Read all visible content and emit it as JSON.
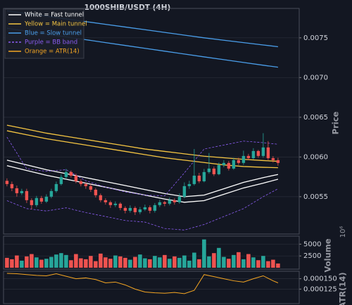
{
  "chart_data": [
    {
      "type": "candlestick",
      "title": "1000SHIB/USDT (4H)",
      "ylabel": "Price",
      "up_color": "#26a69a",
      "down_color": "#ef5350",
      "grid": true,
      "legend": "upper left",
      "xlim": [
        -0.7,
        59.3
      ],
      "ylim": [
        0.00503,
        0.00787
      ],
      "yticks": [
        0.0055,
        {
          "value": 0.006,
          "label": "0.0060"
        },
        0.0065,
        {
          "value": 0.007,
          "label": "0.0070"
        },
        0.0075
      ],
      "x": [
        0,
        1,
        2,
        3,
        4,
        5,
        6,
        7,
        8,
        9,
        10,
        11,
        12,
        13,
        14,
        15,
        16,
        17,
        18,
        19,
        20,
        21,
        22,
        23,
        24,
        25,
        26,
        27,
        28,
        29,
        30,
        31,
        32,
        33,
        34,
        35,
        36,
        37,
        38,
        39,
        40,
        41,
        42,
        43,
        44,
        45,
        46,
        47,
        48,
        49,
        50,
        51,
        52,
        53,
        54,
        55
      ],
      "open": [
        0.0057,
        0.005659,
        0.005606,
        0.005544,
        0.005571,
        0.005456,
        0.005394,
        0.005483,
        0.005438,
        0.0055,
        0.005571,
        0.005659,
        0.005748,
        0.00581,
        0.005765,
        0.005694,
        0.005659,
        0.005633,
        0.005588,
        0.005518,
        0.005456,
        0.00543,
        0.005394,
        0.005412,
        0.005358,
        0.005323,
        0.005358,
        0.005305,
        0.00534,
        0.005367,
        0.005323,
        0.005394,
        0.00543,
        0.005412,
        0.005456,
        0.00543,
        0.0055,
        0.005633,
        0.005659,
        0.005765,
        0.005694,
        0.00581,
        0.005854,
        0.005783,
        0.005898,
        0.005925,
        0.005854,
        0.00596,
        0.005925,
        0.006013,
        0.005985,
        0.006075,
        0.006013,
        0.00612,
        0.005985,
        0.00596
      ],
      "high": [
        0.00573,
        0.00569,
        0.00564,
        0.0056,
        0.0056,
        0.00548,
        0.00551,
        0.00551,
        0.00553,
        0.0056,
        0.00569,
        0.00578,
        0.00585,
        0.00583,
        0.00579,
        0.00572,
        0.00568,
        0.00566,
        0.00561,
        0.00554,
        0.00548,
        0.00545,
        0.00544,
        0.00543,
        0.00538,
        0.00539,
        0.00538,
        0.00537,
        0.0054,
        0.00539,
        0.00542,
        0.00546,
        0.00545,
        0.00549,
        0.00548,
        0.00554,
        0.00568,
        0.0057,
        0.0061,
        0.0058,
        0.00585,
        0.00605,
        0.00588,
        0.00593,
        0.00596,
        0.00595,
        0.00599,
        0.00599,
        0.00608,
        0.00604,
        0.00611,
        0.00609,
        0.0063,
        0.0062,
        0.00601,
        0.00599
      ],
      "low": [
        0.00563,
        0.00557,
        0.0055,
        0.00552,
        0.00542,
        0.00534,
        0.00537,
        0.00541,
        0.00542,
        0.00548,
        0.00555,
        0.00564,
        0.00572,
        0.00574,
        0.00567,
        0.00563,
        0.0056,
        0.00556,
        0.00549,
        0.00543,
        0.0054,
        0.00536,
        0.00537,
        0.00533,
        0.00529,
        0.0053,
        0.00527,
        0.00528,
        0.00532,
        0.00529,
        0.0053,
        0.00537,
        0.00538,
        0.00539,
        0.0054,
        0.00541,
        0.00548,
        0.0056,
        0.00564,
        0.00567,
        0.00568,
        0.00579,
        0.00576,
        0.00577,
        0.00587,
        0.00583,
        0.00584,
        0.0059,
        0.0059,
        0.00596,
        0.00597,
        0.00599,
        0.00599,
        0.00596,
        0.00593,
        0.00589
      ],
      "close": [
        0.005659,
        0.005606,
        0.005544,
        0.005571,
        0.005456,
        0.005394,
        0.005483,
        0.005438,
        0.0055,
        0.005571,
        0.005659,
        0.005748,
        0.00581,
        0.005765,
        0.005694,
        0.005659,
        0.005633,
        0.005588,
        0.005518,
        0.005456,
        0.00543,
        0.005394,
        0.005412,
        0.005358,
        0.005323,
        0.005358,
        0.005305,
        0.00534,
        0.005367,
        0.005323,
        0.005394,
        0.00543,
        0.005412,
        0.005456,
        0.00543,
        0.0055,
        0.005633,
        0.005659,
        0.005765,
        0.005694,
        0.00581,
        0.005854,
        0.005783,
        0.005898,
        0.005925,
        0.005854,
        0.00596,
        0.005925,
        0.006013,
        0.005985,
        0.006075,
        0.006013,
        0.00612,
        0.005985,
        0.00596,
        0.005925
      ],
      "overlays": [
        {
          "name": "White = Fast tunnel",
          "color": "#ffffff",
          "x": [
            0,
            4,
            8,
            12,
            16,
            20,
            24,
            28,
            32,
            36,
            40,
            44,
            48,
            52,
            55
          ],
          "upper": [
            0.00596,
            0.0059,
            0.00584,
            0.00579,
            0.00574,
            0.00569,
            0.00564,
            0.00559,
            0.00554,
            0.0055,
            0.00552,
            0.0056,
            0.00568,
            0.00574,
            0.00578
          ],
          "lower": [
            0.00589,
            0.00583,
            0.00577,
            0.00572,
            0.00567,
            0.00562,
            0.00557,
            0.00552,
            0.00547,
            0.00543,
            0.00545,
            0.00553,
            0.00561,
            0.00567,
            0.00572
          ]
        },
        {
          "name": "Yellow = Main tunnel",
          "color": "#f5c542",
          "x": [
            0,
            4,
            8,
            12,
            16,
            20,
            24,
            28,
            32,
            36,
            40,
            44,
            48,
            52,
            55
          ],
          "upper": [
            0.0064,
            0.00635,
            0.0063,
            0.00626,
            0.00622,
            0.00618,
            0.00614,
            0.0061,
            0.00607,
            0.00604,
            0.00601,
            0.00599,
            0.00597,
            0.005955,
            0.005945
          ],
          "lower": [
            0.00633,
            0.00628,
            0.00623,
            0.00619,
            0.00615,
            0.00611,
            0.00607,
            0.00603,
            0.00599,
            0.00596,
            0.00593,
            0.0059,
            0.00588,
            0.00587,
            0.005865
          ]
        },
        {
          "name": "Blue = Slow tunnel",
          "color": "#4a9eea",
          "x": [
            0,
            4,
            8,
            12,
            16,
            20,
            24,
            28,
            32,
            36,
            40,
            44,
            48,
            52,
            55
          ],
          "upper": [
            0.00784,
            0.007806,
            0.007772,
            0.007738,
            0.007704,
            0.00767,
            0.007636,
            0.007602,
            0.007568,
            0.007534,
            0.0075,
            0.00747,
            0.00744,
            0.00741,
            0.007388
          ],
          "lower": [
            0.00762,
            0.007584,
            0.007548,
            0.007512,
            0.007476,
            0.00744,
            0.007404,
            0.007368,
            0.007332,
            0.007296,
            0.00726,
            0.007225,
            0.00719,
            0.007155,
            0.00713
          ]
        },
        {
          "name": "Purple = BB band",
          "color": "#8a5cf0",
          "dashed": true,
          "x": [
            0,
            4,
            8,
            12,
            16,
            20,
            24,
            28,
            32,
            36,
            40,
            44,
            48,
            52,
            55
          ],
          "upper": [
            0.00625,
            0.00585,
            0.00582,
            0.00584,
            0.0057,
            0.00562,
            0.00556,
            0.00552,
            0.00551,
            0.0058,
            0.0061,
            0.00615,
            0.0062,
            0.00618,
            0.00616
          ],
          "lower": [
            0.00545,
            0.00535,
            0.00532,
            0.00536,
            0.0053,
            0.00525,
            0.0052,
            0.00518,
            0.0051,
            0.00508,
            0.00515,
            0.00525,
            0.00535,
            0.0055,
            0.0056
          ]
        }
      ]
    },
    {
      "type": "bar",
      "ylabel": "Volume",
      "offset_label": "10⁶",
      "grid": true,
      "xlim": [
        -0.7,
        59.3
      ],
      "ylim": [
        -300,
        6700
      ],
      "yticks": [
        2500,
        5000
      ],
      "x": [
        0,
        1,
        2,
        3,
        4,
        5,
        6,
        7,
        8,
        9,
        10,
        11,
        12,
        13,
        14,
        15,
        16,
        17,
        18,
        19,
        20,
        21,
        22,
        23,
        24,
        25,
        26,
        27,
        28,
        29,
        30,
        31,
        32,
        33,
        34,
        35,
        36,
        37,
        38,
        39,
        40,
        41,
        42,
        43,
        44,
        45,
        46,
        47,
        48,
        49,
        50,
        51,
        52,
        53,
        54,
        55
      ],
      "values": [
        2100,
        1800,
        2600,
        1500,
        2400,
        2900,
        2200,
        1700,
        1900,
        2300,
        2800,
        3100,
        2700,
        1600,
        2900,
        2000,
        1800,
        2500,
        1400,
        3000,
        2200,
        1900,
        2600,
        2400,
        2100,
        1700,
        2300,
        2800,
        2000,
        1800,
        2500,
        2200,
        2700,
        1900,
        2400,
        2100,
        2600,
        1500,
        3200,
        1800,
        6000,
        2400,
        3100,
        4200,
        2300,
        1900,
        2700,
        3300,
        1800,
        2900,
        2200,
        1600,
        2500,
        1400,
        1700,
        900
      ]
    },
    {
      "type": "line",
      "ylabel": "ATR(14)",
      "grid": true,
      "xlim": [
        -0.7,
        59.3
      ],
      "ylim": [
        9e-05,
        0.000168
      ],
      "yticks": [
        0.000125,
        {
          "value": 0.00015,
          "label": "0.000150"
        }
      ],
      "series": [
        {
          "name": "Orange = ATR(14)",
          "color": "#f5a623",
          "x": [
            0,
            2,
            4,
            6,
            8,
            10,
            12,
            14,
            16,
            18,
            20,
            22,
            24,
            26,
            28,
            30,
            32,
            34,
            36,
            38,
            40,
            42,
            44,
            46,
            48,
            50,
            52,
            54,
            55
          ],
          "values": [
            0.000163,
            0.000162,
            0.00016,
            0.000158,
            0.000157,
            0.000162,
            0.000156,
            0.00015,
            0.000152,
            0.000148,
            0.00014,
            0.000142,
            0.000135,
            0.000125,
            0.000118,
            0.000116,
            0.000115,
            0.000117,
            0.000114,
            0.000122,
            0.00016,
            0.000155,
            0.00015,
            0.000145,
            0.000142,
            0.00015,
            0.000157,
            0.000145,
            0.00014
          ]
        }
      ]
    }
  ]
}
